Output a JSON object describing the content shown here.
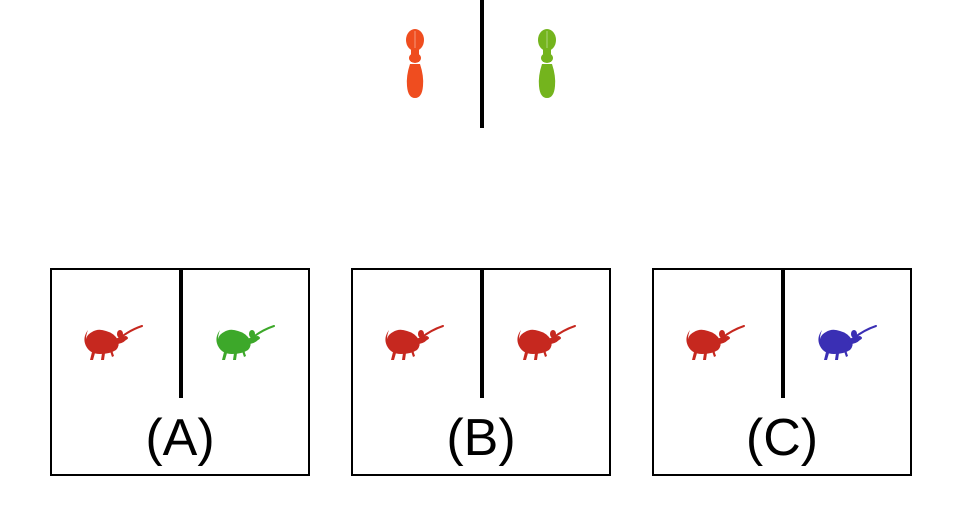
{
  "top_pair": {
    "left_item": {
      "icon": "peg-icon",
      "color": "#ef4d1f"
    },
    "right_item": {
      "icon": "peg-icon",
      "color": "#74b41d"
    }
  },
  "options": [
    {
      "label": "(A)",
      "left_animal": {
        "icon": "mouse-icon",
        "color": "#c6281f"
      },
      "right_animal": {
        "icon": "mouse-icon",
        "color": "#3da82a"
      }
    },
    {
      "label": "(B)",
      "left_animal": {
        "icon": "mouse-icon",
        "color": "#c6281f"
      },
      "right_animal": {
        "icon": "mouse-icon",
        "color": "#c6281f"
      }
    },
    {
      "label": "(C)",
      "left_animal": {
        "icon": "mouse-icon",
        "color": "#c6281f"
      },
      "right_animal": {
        "icon": "mouse-icon",
        "color": "#3a2fb4"
      }
    }
  ]
}
